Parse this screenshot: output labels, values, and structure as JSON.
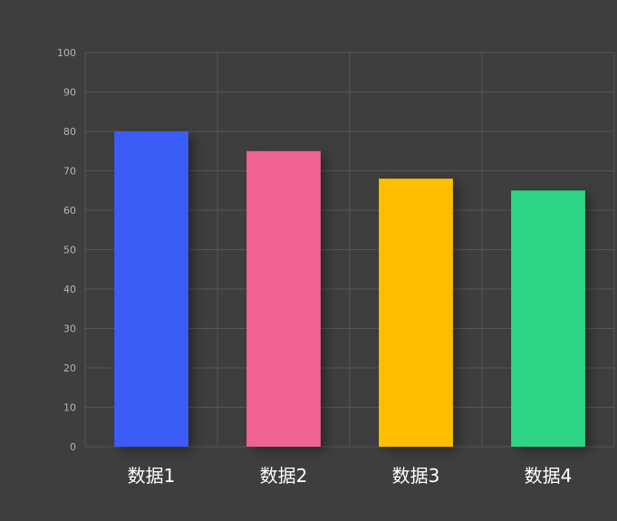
{
  "chart_data": {
    "type": "bar",
    "categories": [
      "数据1",
      "数据2",
      "数据3",
      "数据4"
    ],
    "values": [
      80,
      75,
      68,
      65
    ],
    "colors": [
      "#3a5cf5",
      "#f06292",
      "#ffbf00",
      "#2fd584"
    ],
    "ylim": [
      0,
      100
    ],
    "yticks": [
      0,
      10,
      20,
      30,
      40,
      50,
      60,
      70,
      80,
      90,
      100
    ],
    "grid": true,
    "legend": "none",
    "title": "",
    "xlabel": "",
    "ylabel": ""
  },
  "theme": {
    "background": "#3e3e3e",
    "grid_color": "#555555",
    "tick_label_color": "#b5b5b5",
    "category_label_color": "#ffffff"
  }
}
